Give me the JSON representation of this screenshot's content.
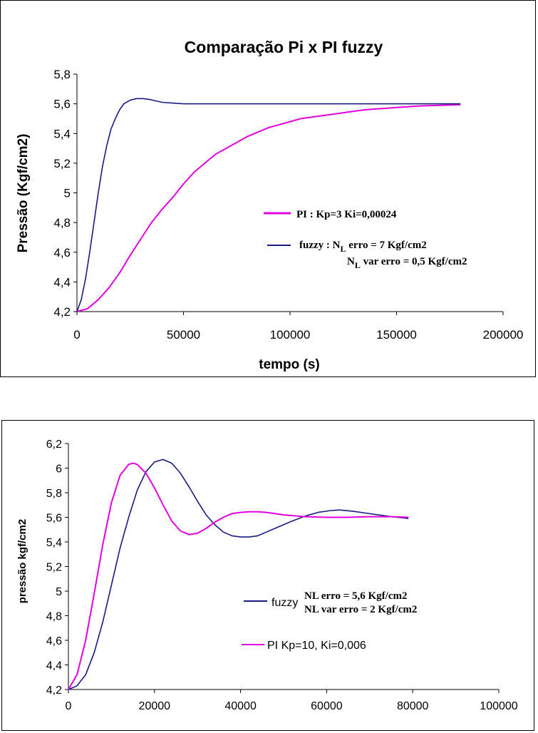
{
  "colors": {
    "pi": "#e000e0",
    "fuzzy": "#1a1a80",
    "axis": "#000000"
  },
  "chart_data": [
    {
      "type": "line",
      "title": "Comparação Pi x PI fuzzy",
      "xlabel": "tempo (s)",
      "ylabel": "Pressão (Kgf/cm2)",
      "xlim": [
        0,
        200000
      ],
      "ylim": [
        4.2,
        5.8
      ],
      "grid": false,
      "x_ticks": [
        "0",
        "50000",
        "100000",
        "150000",
        "200000"
      ],
      "y_ticks": [
        "4,2",
        "4,4",
        "4,6",
        "4,8",
        "5",
        "5,2",
        "5,4",
        "5,6",
        "5,8"
      ],
      "legend": {
        "pi_label": "PI : Kp=3 Ki=0,00024",
        "fuzzy_prefix": "fuzzy : N",
        "fuzzy_sub1": "L",
        "fuzzy_rest1": " erro = 7 Kgf/cm2",
        "fuzzy_n2": "N",
        "fuzzy_sub2": "L",
        "fuzzy_rest2": " var erro = 0,5 Kgf/cm2"
      },
      "series": [
        {
          "key": "pi",
          "x": [
            0,
            5000,
            10000,
            15000,
            20000,
            25000,
            30000,
            35000,
            40000,
            45000,
            50000,
            55000,
            60000,
            65000,
            70000,
            75000,
            80000,
            85000,
            90000,
            95000,
            100000,
            105000,
            110000,
            115000,
            120000,
            125000,
            130000,
            135000,
            140000,
            145000,
            150000,
            155000,
            160000,
            165000,
            170000,
            175000,
            180000
          ],
          "y": [
            4.2,
            4.22,
            4.28,
            4.36,
            4.46,
            4.58,
            4.69,
            4.8,
            4.89,
            4.97,
            5.06,
            5.14,
            5.2,
            5.26,
            5.3,
            5.34,
            5.38,
            5.41,
            5.44,
            5.46,
            5.48,
            5.5,
            5.51,
            5.52,
            5.53,
            5.54,
            5.55,
            5.56,
            5.565,
            5.57,
            5.575,
            5.58,
            5.585,
            5.588,
            5.59,
            5.592,
            5.595
          ]
        },
        {
          "key": "fuzzy",
          "x": [
            0,
            2000,
            4000,
            6000,
            8000,
            10000,
            12000,
            14000,
            16000,
            18000,
            20000,
            22000,
            25000,
            28000,
            31000,
            34000,
            37000,
            40000,
            45000,
            50000,
            60000,
            80000,
            100000,
            120000,
            150000,
            180000
          ],
          "y": [
            4.2,
            4.28,
            4.42,
            4.6,
            4.8,
            5.0,
            5.18,
            5.32,
            5.43,
            5.5,
            5.56,
            5.6,
            5.625,
            5.635,
            5.635,
            5.63,
            5.62,
            5.61,
            5.605,
            5.6,
            5.6,
            5.6,
            5.6,
            5.6,
            5.6,
            5.6
          ]
        }
      ]
    },
    {
      "type": "line",
      "xlabel": "",
      "ylabel": "pressão kgf/cm2",
      "xlim": [
        0,
        100000
      ],
      "ylim": [
        4.2,
        6.2
      ],
      "grid": false,
      "x_ticks": [
        "0",
        "20000",
        "40000",
        "60000",
        "80000",
        "100000"
      ],
      "y_ticks": [
        "4,2",
        "4,4",
        "4,6",
        "4,8",
        "5",
        "5,2",
        "5,4",
        "5,6",
        "5,8",
        "6",
        "6,2"
      ],
      "legend": {
        "fuzzy_name": "fuzzy",
        "fuzzy_line1": "NL erro = 5,6 Kgf/cm2",
        "fuzzy_line2": "NL var erro = 2 Kgf/cm2",
        "pi_label": "PI Kp=10, Ki=0,006"
      },
      "series": [
        {
          "key": "fuzzy",
          "x": [
            0,
            2000,
            4000,
            6000,
            8000,
            10000,
            12000,
            14000,
            16000,
            18000,
            20000,
            22000,
            24000,
            26000,
            28000,
            30000,
            32000,
            34000,
            36000,
            38000,
            40000,
            42000,
            44000,
            46000,
            48000,
            50000,
            52000,
            55000,
            58000,
            61000,
            63000,
            66000,
            69000,
            72000,
            75000,
            78000,
            79000
          ],
          "y": [
            4.2,
            4.23,
            4.32,
            4.5,
            4.75,
            5.05,
            5.35,
            5.6,
            5.82,
            5.97,
            6.05,
            6.07,
            6.04,
            5.96,
            5.85,
            5.73,
            5.62,
            5.54,
            5.48,
            5.45,
            5.44,
            5.44,
            5.45,
            5.48,
            5.51,
            5.54,
            5.57,
            5.61,
            5.64,
            5.655,
            5.66,
            5.65,
            5.635,
            5.62,
            5.605,
            5.595,
            5.59
          ]
        },
        {
          "key": "pi",
          "x": [
            0,
            2000,
            4000,
            6000,
            8000,
            10000,
            12000,
            14000,
            15000,
            16000,
            18000,
            20000,
            22000,
            24000,
            26000,
            28000,
            30000,
            32000,
            34000,
            36000,
            38000,
            40000,
            42000,
            44000,
            46000,
            48000,
            50000,
            55000,
            60000,
            65000,
            70000,
            75000,
            79000
          ],
          "y": [
            4.2,
            4.32,
            4.6,
            4.98,
            5.38,
            5.72,
            5.94,
            6.03,
            6.04,
            6.03,
            5.96,
            5.84,
            5.7,
            5.57,
            5.49,
            5.46,
            5.47,
            5.51,
            5.56,
            5.6,
            5.63,
            5.64,
            5.645,
            5.645,
            5.64,
            5.63,
            5.62,
            5.605,
            5.6,
            5.6,
            5.605,
            5.605,
            5.6
          ]
        }
      ]
    }
  ]
}
